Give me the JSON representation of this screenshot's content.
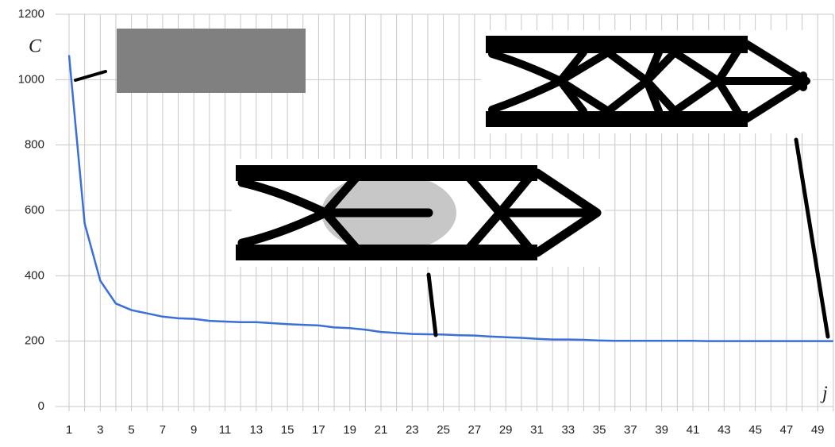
{
  "chart_data": {
    "type": "line",
    "x_label": "j",
    "y_label": "C",
    "categories": [
      1,
      null,
      3,
      null,
      5,
      null,
      7,
      null,
      9,
      null,
      11,
      null,
      13,
      null,
      15,
      null,
      17,
      null,
      19,
      null,
      21,
      null,
      23,
      null,
      25,
      null,
      27,
      null,
      29,
      null,
      31,
      null,
      33,
      null,
      35,
      null,
      37,
      null,
      39,
      null,
      41,
      null,
      43,
      null,
      45,
      null,
      47,
      null,
      49,
      null
    ],
    "values": [
      1075,
      560,
      385,
      315,
      295,
      285,
      275,
      270,
      268,
      262,
      260,
      258,
      258,
      255,
      252,
      250,
      248,
      242,
      240,
      235,
      228,
      225,
      222,
      221,
      220,
      218,
      217,
      214,
      212,
      210,
      207,
      205,
      205,
      204,
      202,
      201,
      201,
      201,
      201,
      201,
      201,
      200,
      200,
      200,
      200,
      200,
      200,
      200,
      200,
      200
    ],
    "color": "#3a6fd8",
    "ylim": [
      0,
      1200
    ],
    "yticks": [
      0,
      200,
      400,
      600,
      800,
      1000,
      1200
    ],
    "grid": true
  }
}
